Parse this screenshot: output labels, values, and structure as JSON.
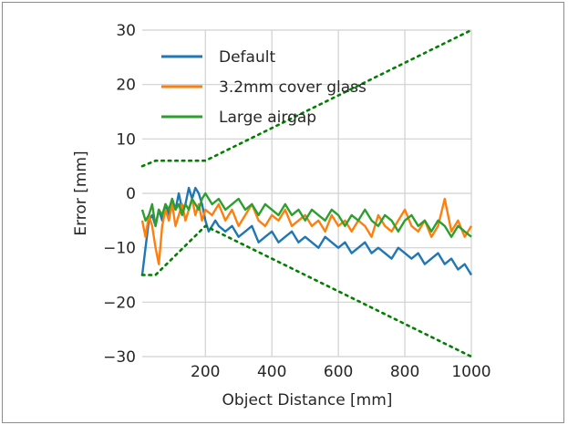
{
  "chart_data": {
    "type": "line",
    "title": "",
    "xlabel": "Object Distance [mm]",
    "ylabel": "Error [mm]",
    "xlim": [
      10,
      1000
    ],
    "ylim": [
      -30,
      30
    ],
    "xticks": [
      200,
      400,
      600,
      800,
      1000
    ],
    "yticks": [
      -30,
      -20,
      -10,
      0,
      10,
      20,
      30
    ],
    "grid": true,
    "legend_position": "top-left",
    "series": [
      {
        "name": "Default",
        "color": "#1f77b4",
        "x": [
          10,
          20,
          30,
          40,
          50,
          60,
          70,
          80,
          90,
          100,
          110,
          120,
          130,
          140,
          150,
          160,
          170,
          180,
          190,
          200,
          210,
          220,
          230,
          240,
          260,
          280,
          300,
          320,
          340,
          360,
          380,
          400,
          420,
          440,
          460,
          480,
          500,
          520,
          540,
          560,
          580,
          600,
          620,
          640,
          660,
          680,
          700,
          720,
          740,
          760,
          780,
          800,
          820,
          840,
          860,
          880,
          900,
          920,
          940,
          960,
          980,
          1000
        ],
        "y": [
          -15,
          -10,
          -5,
          -4,
          -6,
          -3,
          -5,
          -2,
          -4,
          -1,
          -3,
          0,
          -3,
          -2,
          1,
          -1,
          1,
          0,
          -2,
          -5,
          -7,
          -6,
          -5,
          -6,
          -7,
          -6,
          -8,
          -7,
          -6,
          -9,
          -8,
          -7,
          -9,
          -8,
          -7,
          -9,
          -8,
          -9,
          -10,
          -8,
          -9,
          -10,
          -9,
          -11,
          -10,
          -9,
          -11,
          -10,
          -11,
          -12,
          -10,
          -11,
          -12,
          -11,
          -13,
          -12,
          -11,
          -13,
          -12,
          -14,
          -13,
          -15
        ]
      },
      {
        "name": "3.2mm cover glass",
        "color": "#ff7f0e",
        "x": [
          10,
          20,
          30,
          40,
          50,
          60,
          70,
          80,
          90,
          100,
          110,
          120,
          130,
          140,
          150,
          160,
          170,
          180,
          190,
          200,
          220,
          240,
          260,
          280,
          300,
          320,
          340,
          360,
          380,
          400,
          420,
          440,
          460,
          480,
          500,
          520,
          540,
          560,
          580,
          600,
          620,
          640,
          660,
          680,
          700,
          720,
          740,
          760,
          780,
          800,
          820,
          840,
          860,
          880,
          900,
          920,
          940,
          960,
          980,
          1000
        ],
        "y": [
          -5,
          -8,
          -4,
          -6,
          -10,
          -13,
          -6,
          -3,
          -5,
          -2,
          -6,
          -4,
          -2,
          -5,
          -3,
          -1,
          -4,
          -2,
          -5,
          -3,
          -4,
          -2,
          -5,
          -3,
          -6,
          -4,
          -2,
          -5,
          -6,
          -4,
          -5,
          -3,
          -6,
          -5,
          -4,
          -6,
          -5,
          -7,
          -4,
          -6,
          -5,
          -7,
          -5,
          -6,
          -8,
          -4,
          -6,
          -7,
          -5,
          -3,
          -6,
          -7,
          -5,
          -8,
          -6,
          -1,
          -7,
          -5,
          -8,
          -6
        ]
      },
      {
        "name": "Large airgap",
        "color": "#2ca02c",
        "x": [
          10,
          20,
          30,
          40,
          50,
          60,
          70,
          80,
          90,
          100,
          110,
          120,
          130,
          140,
          150,
          160,
          170,
          180,
          190,
          200,
          220,
          240,
          260,
          280,
          300,
          320,
          340,
          360,
          380,
          400,
          420,
          440,
          460,
          480,
          500,
          520,
          540,
          560,
          580,
          600,
          620,
          640,
          660,
          680,
          700,
          720,
          740,
          760,
          780,
          800,
          820,
          840,
          860,
          880,
          900,
          920,
          940,
          960,
          980,
          1000
        ],
        "y": [
          -3,
          -5,
          -4,
          -2,
          -6,
          -3,
          -4,
          -2,
          -3,
          -1,
          -3,
          -2,
          -4,
          -2,
          -3,
          -1,
          -2,
          -3,
          -1,
          0,
          -2,
          -1,
          -3,
          -2,
          -1,
          -3,
          -2,
          -4,
          -2,
          -3,
          -4,
          -2,
          -4,
          -3,
          -5,
          -3,
          -4,
          -5,
          -3,
          -4,
          -6,
          -4,
          -5,
          -3,
          -5,
          -6,
          -4,
          -5,
          -7,
          -5,
          -4,
          -6,
          -5,
          -7,
          -5,
          -6,
          -8,
          -6,
          -7,
          -8
        ]
      },
      {
        "name": "",
        "color": "#007f00",
        "style": "dotted",
        "x": [
          10,
          50,
          200,
          1000
        ],
        "y": [
          5,
          6,
          6,
          30
        ]
      },
      {
        "name": "",
        "color": "#007f00",
        "style": "dotted",
        "x": [
          10,
          50,
          200,
          1000
        ],
        "y": [
          -15,
          -15,
          -6,
          -30
        ]
      }
    ]
  }
}
